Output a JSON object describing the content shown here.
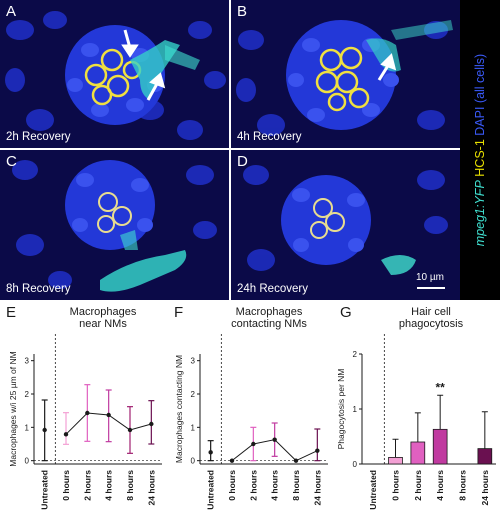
{
  "figure": {
    "image_panels": [
      {
        "letter": "A",
        "caption": "2h Recovery"
      },
      {
        "letter": "B",
        "caption": "4h Recovery"
      },
      {
        "letter": "C",
        "caption": "8h Recovery"
      },
      {
        "letter": "D",
        "caption": "24h Recovery"
      }
    ],
    "scale_bar": "10 µm",
    "legend": {
      "part1": "mpeg1:YFP",
      "part2": " HCS-1",
      "part3": " DAPI (all cells)",
      "colors": {
        "mpeg": "#40e0d0",
        "hcs": "#e8e000",
        "dapi": "#3a3af0"
      }
    }
  },
  "chart_data": [
    {
      "letter": "E",
      "type": "line",
      "title_line1": "Macrophages",
      "title_line2": "near NMs",
      "ylabel": "Macrophages w/i 25 µm of NM",
      "categories": [
        "Untreated",
        "0 hours",
        "2 hours",
        "4 hours",
        "8 hours",
        "24 hours"
      ],
      "values": [
        0.92,
        0.79,
        1.43,
        1.37,
        0.92,
        1.1
      ],
      "err_low": [
        0.92,
        0.3,
        0.85,
        0.8,
        0.7,
        0.6
      ],
      "err_high": [
        0.9,
        0.65,
        0.85,
        0.75,
        0.7,
        0.7
      ],
      "colors": [
        "#1a1a1a",
        "#f3a0d4",
        "#e060c0",
        "#c03aa0",
        "#a02070",
        "#6a1050"
      ],
      "ylim": [
        -0.1,
        3.2
      ],
      "yticks": [
        0,
        1,
        2,
        3
      ]
    },
    {
      "letter": "F",
      "type": "line",
      "title_line1": "Macrophages",
      "title_line2": "contacting NMs",
      "ylabel": "Macrophages contacting NM",
      "categories": [
        "Untreated",
        "0 hours",
        "2 hours",
        "4 hours",
        "8 hours",
        "24 hours"
      ],
      "values": [
        0.25,
        0.0,
        0.5,
        0.63,
        0.0,
        0.3
      ],
      "err_low": [
        0.25,
        0.0,
        0.5,
        0.5,
        0.0,
        0.3
      ],
      "err_high": [
        0.35,
        0.0,
        0.5,
        0.5,
        0.0,
        0.65
      ],
      "colors": [
        "#1a1a1a",
        "#f3a0d4",
        "#e060c0",
        "#c03aa0",
        "#a02070",
        "#6a1050"
      ],
      "ylim": [
        -0.1,
        3.2
      ],
      "yticks": [
        0,
        1,
        2,
        3
      ]
    },
    {
      "letter": "G",
      "type": "bar",
      "title_line1": "Hair cell",
      "title_line2": "phagocytosis",
      "ylabel": "Phagocytosis per NM",
      "categories": [
        "Untreated",
        "0 hours",
        "2 hours",
        "4 hours",
        "8 hours",
        "24 hours"
      ],
      "values": [
        0,
        0.12,
        0.4,
        0.63,
        0,
        0.28
      ],
      "err_high": [
        0,
        0.33,
        0.53,
        0.62,
        0,
        0.67
      ],
      "colors": [
        "#1a1a1a",
        "#f3a0d4",
        "#e060c0",
        "#c03aa0",
        "#a02070",
        "#6a1050"
      ],
      "annotation": {
        "category": "4 hours",
        "text": "**"
      },
      "ylim": [
        0,
        2.0
      ],
      "yticks": [
        0,
        1,
        2
      ]
    }
  ]
}
